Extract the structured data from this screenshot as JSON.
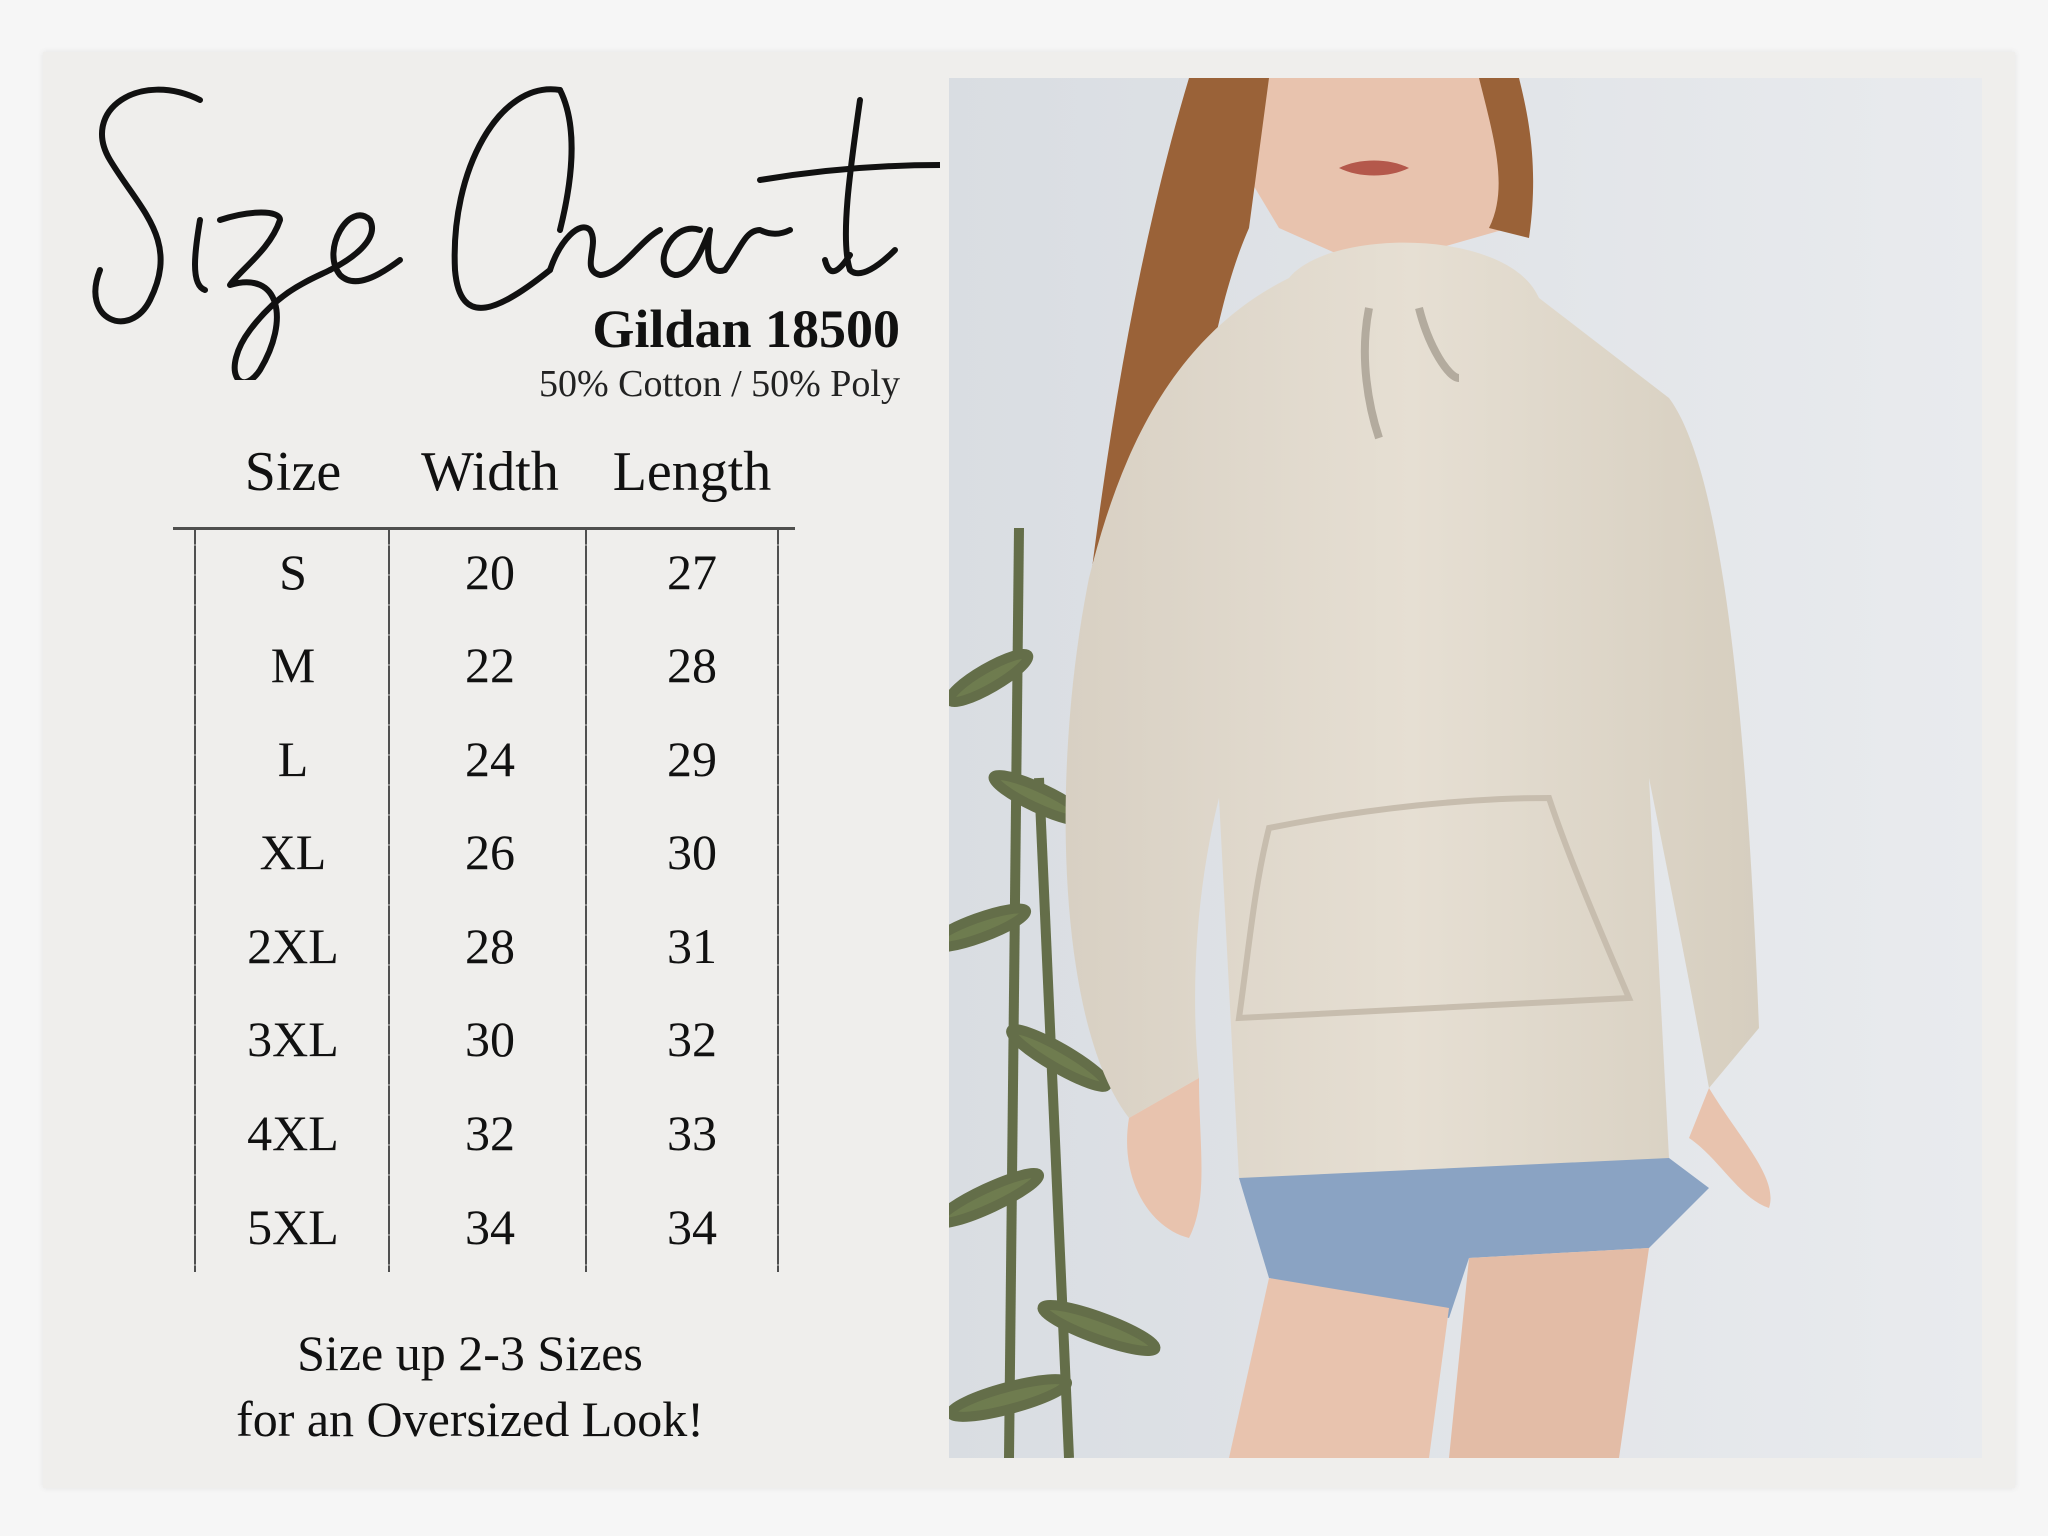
{
  "title": "Size Chart",
  "product": {
    "brand": "Gildan 18500",
    "fabric": "50% Cotton / 50% Poly"
  },
  "table": {
    "headers": [
      "Size",
      "Width",
      "Length"
    ],
    "rows": [
      [
        "S",
        "20",
        "27"
      ],
      [
        "M",
        "22",
        "28"
      ],
      [
        "L",
        "24",
        "29"
      ],
      [
        "XL",
        "26",
        "30"
      ],
      [
        "2XL",
        "28",
        "31"
      ],
      [
        "3XL",
        "30",
        "32"
      ],
      [
        "4XL",
        "32",
        "33"
      ],
      [
        "5XL",
        "34",
        "34"
      ]
    ]
  },
  "footer": {
    "line1": "Size up 2-3 Sizes",
    "line2": "for an Oversized Look!"
  },
  "colors": {
    "panel": "#efeeec",
    "hoodie": "#e2dbcf",
    "text": "#111111"
  }
}
